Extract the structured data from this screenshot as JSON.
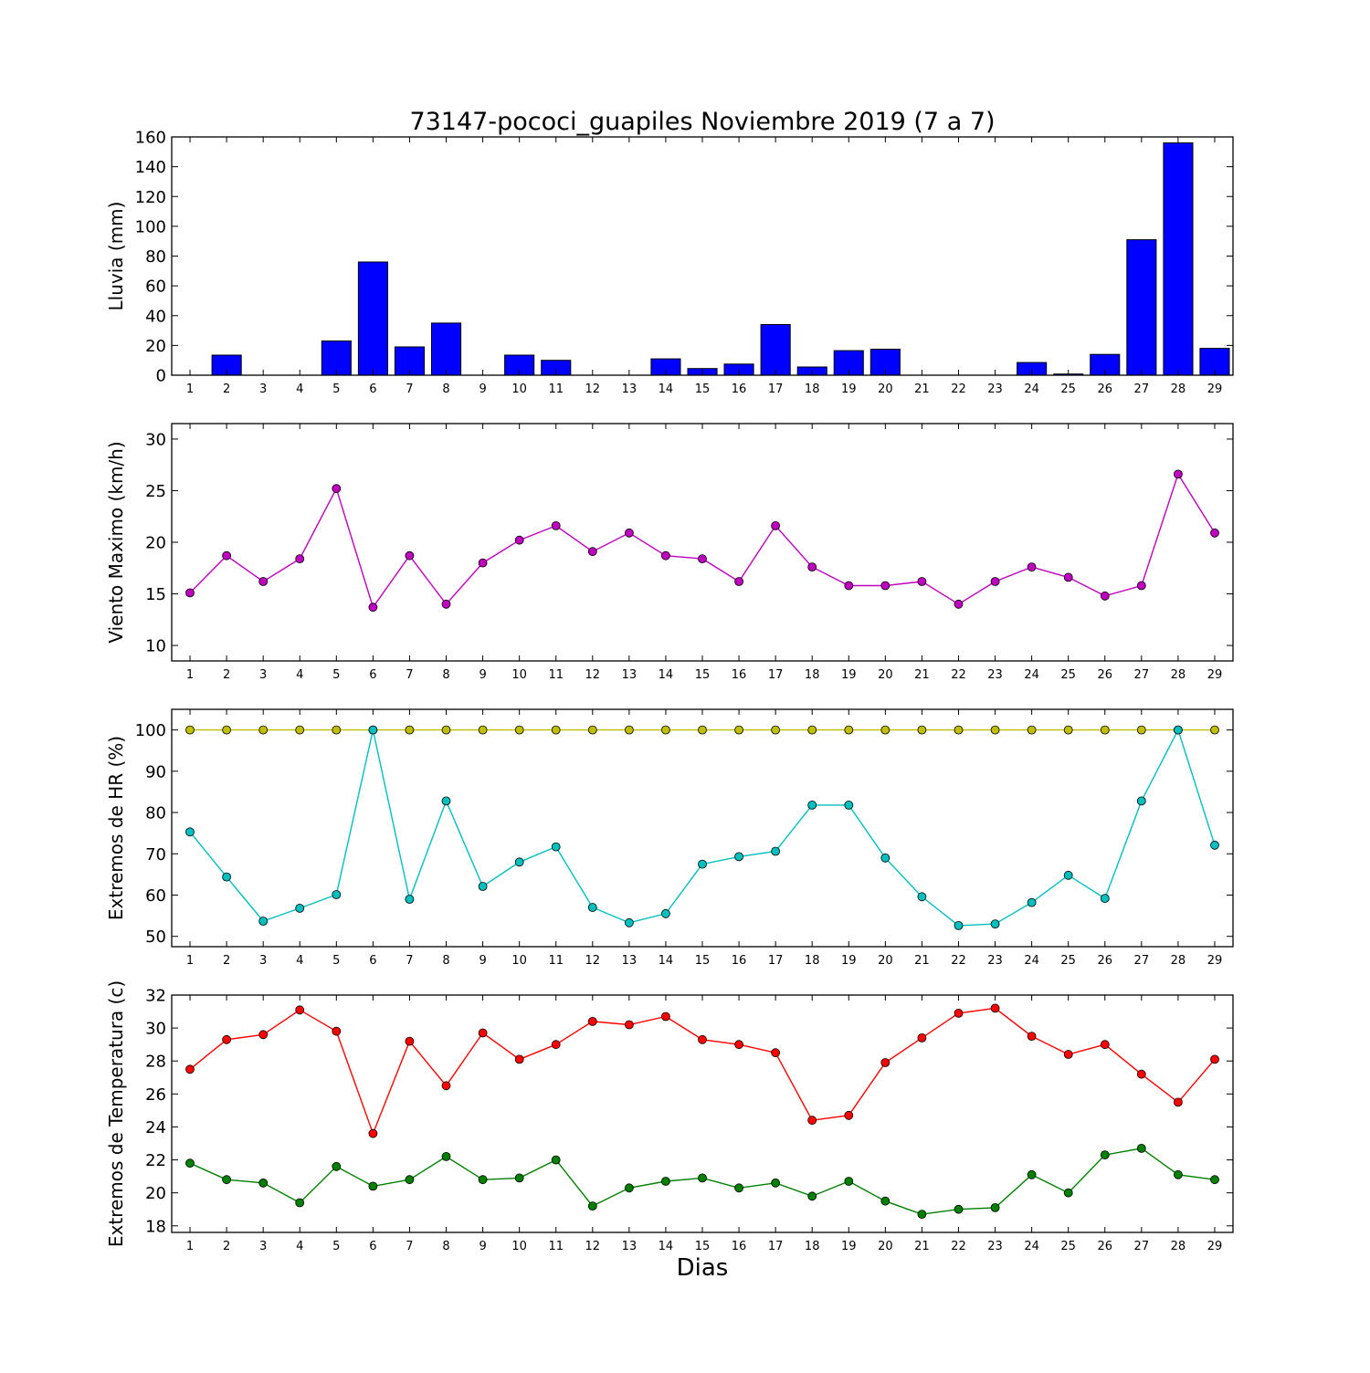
{
  "title": "73147-pococi_guapiles Noviembre 2019  (7 a 7)",
  "xlabel": "Dias",
  "chart_data": [
    {
      "type": "bar",
      "ylabel": "Lluvia (mm)",
      "ylim": [
        0,
        160
      ],
      "yticks": [
        0,
        20,
        40,
        60,
        80,
        100,
        120,
        140,
        160
      ],
      "categories": [
        "1",
        "2",
        "3",
        "4",
        "5",
        "6",
        "7",
        "8",
        "9",
        "10",
        "11",
        "12",
        "13",
        "14",
        "15",
        "16",
        "17",
        "18",
        "19",
        "20",
        "21",
        "22",
        "23",
        "24",
        "25",
        "26",
        "27",
        "28",
        "29"
      ],
      "series": [
        {
          "color": "#0000ff",
          "values": [
            0,
            13.5,
            0,
            0,
            23,
            76,
            19,
            35,
            0,
            13.5,
            10,
            0,
            0,
            11,
            4.5,
            7.5,
            34,
            5.5,
            16.5,
            17.5,
            0,
            0,
            0,
            8.5,
            0.8,
            14,
            91,
            156,
            18
          ]
        }
      ]
    },
    {
      "type": "line",
      "ylabel": "Viento Maximo (km/h)",
      "ylim": [
        8.5,
        31.5
      ],
      "yticks": [
        10,
        15,
        20,
        25,
        30
      ],
      "categories": [
        "1",
        "2",
        "3",
        "4",
        "5",
        "6",
        "7",
        "8",
        "9",
        "10",
        "11",
        "12",
        "13",
        "14",
        "15",
        "16",
        "17",
        "18",
        "19",
        "20",
        "21",
        "22",
        "23",
        "24",
        "25",
        "26",
        "27",
        "28",
        "29"
      ],
      "series": [
        {
          "color": "#bf00bf",
          "values": [
            15.1,
            18.7,
            16.2,
            18.4,
            25.2,
            13.7,
            18.7,
            14.0,
            18.0,
            20.2,
            21.6,
            19.1,
            20.9,
            18.7,
            18.4,
            16.2,
            21.6,
            17.6,
            15.8,
            15.8,
            16.2,
            14.0,
            16.2,
            17.6,
            16.6,
            14.8,
            15.8,
            26.6,
            20.9
          ]
        }
      ]
    },
    {
      "type": "line",
      "ylabel": "Extremos de HR (%)",
      "ylim": [
        47.5,
        105
      ],
      "yticks": [
        50,
        60,
        70,
        80,
        90,
        100
      ],
      "categories": [
        "1",
        "2",
        "3",
        "4",
        "5",
        "6",
        "7",
        "8",
        "9",
        "10",
        "11",
        "12",
        "13",
        "14",
        "15",
        "16",
        "17",
        "18",
        "19",
        "20",
        "21",
        "22",
        "23",
        "24",
        "25",
        "26",
        "27",
        "28",
        "29"
      ],
      "series": [
        {
          "color": "#bfbf00",
          "values": [
            100,
            100,
            100,
            100,
            100,
            100,
            100,
            100,
            100,
            100,
            100,
            100,
            100,
            100,
            100,
            100,
            100,
            100,
            100,
            100,
            100,
            100,
            100,
            100,
            100,
            100,
            100,
            100,
            100
          ]
        },
        {
          "color": "#00bfbf",
          "values": [
            75.3,
            64.4,
            53.7,
            56.8,
            60.1,
            100,
            59.0,
            82.8,
            62.1,
            68.0,
            71.7,
            57.0,
            53.3,
            55.5,
            67.5,
            69.3,
            70.6,
            81.8,
            81.8,
            69.0,
            59.6,
            52.6,
            53.0,
            58.2,
            64.8,
            59.2,
            82.8,
            100,
            72.1
          ]
        }
      ]
    },
    {
      "type": "line",
      "ylabel": "Extremos de Temperatura (c)",
      "ylim": [
        17.6,
        32
      ],
      "yticks": [
        18,
        20,
        22,
        24,
        26,
        28,
        30,
        32
      ],
      "categories": [
        "1",
        "2",
        "3",
        "4",
        "5",
        "6",
        "7",
        "8",
        "9",
        "10",
        "11",
        "12",
        "13",
        "14",
        "15",
        "16",
        "17",
        "18",
        "19",
        "20",
        "21",
        "22",
        "23",
        "24",
        "25",
        "26",
        "27",
        "28",
        "29"
      ],
      "series": [
        {
          "color": "#ff0000",
          "values": [
            27.5,
            29.3,
            29.6,
            31.1,
            29.8,
            23.6,
            29.2,
            26.5,
            29.7,
            28.1,
            29.0,
            30.4,
            30.2,
            30.7,
            29.3,
            29.0,
            28.5,
            24.4,
            24.7,
            27.9,
            29.4,
            30.9,
            31.2,
            29.5,
            28.4,
            29.0,
            27.2,
            25.5,
            28.1
          ]
        },
        {
          "color": "#008000",
          "values": [
            21.8,
            20.8,
            20.6,
            19.4,
            21.6,
            20.4,
            20.8,
            22.2,
            20.8,
            20.9,
            22.0,
            19.2,
            20.3,
            20.7,
            20.9,
            20.3,
            20.6,
            19.8,
            20.7,
            19.5,
            18.7,
            19.0,
            19.1,
            21.1,
            20.0,
            22.3,
            22.7,
            21.1,
            20.8
          ]
        }
      ]
    }
  ]
}
